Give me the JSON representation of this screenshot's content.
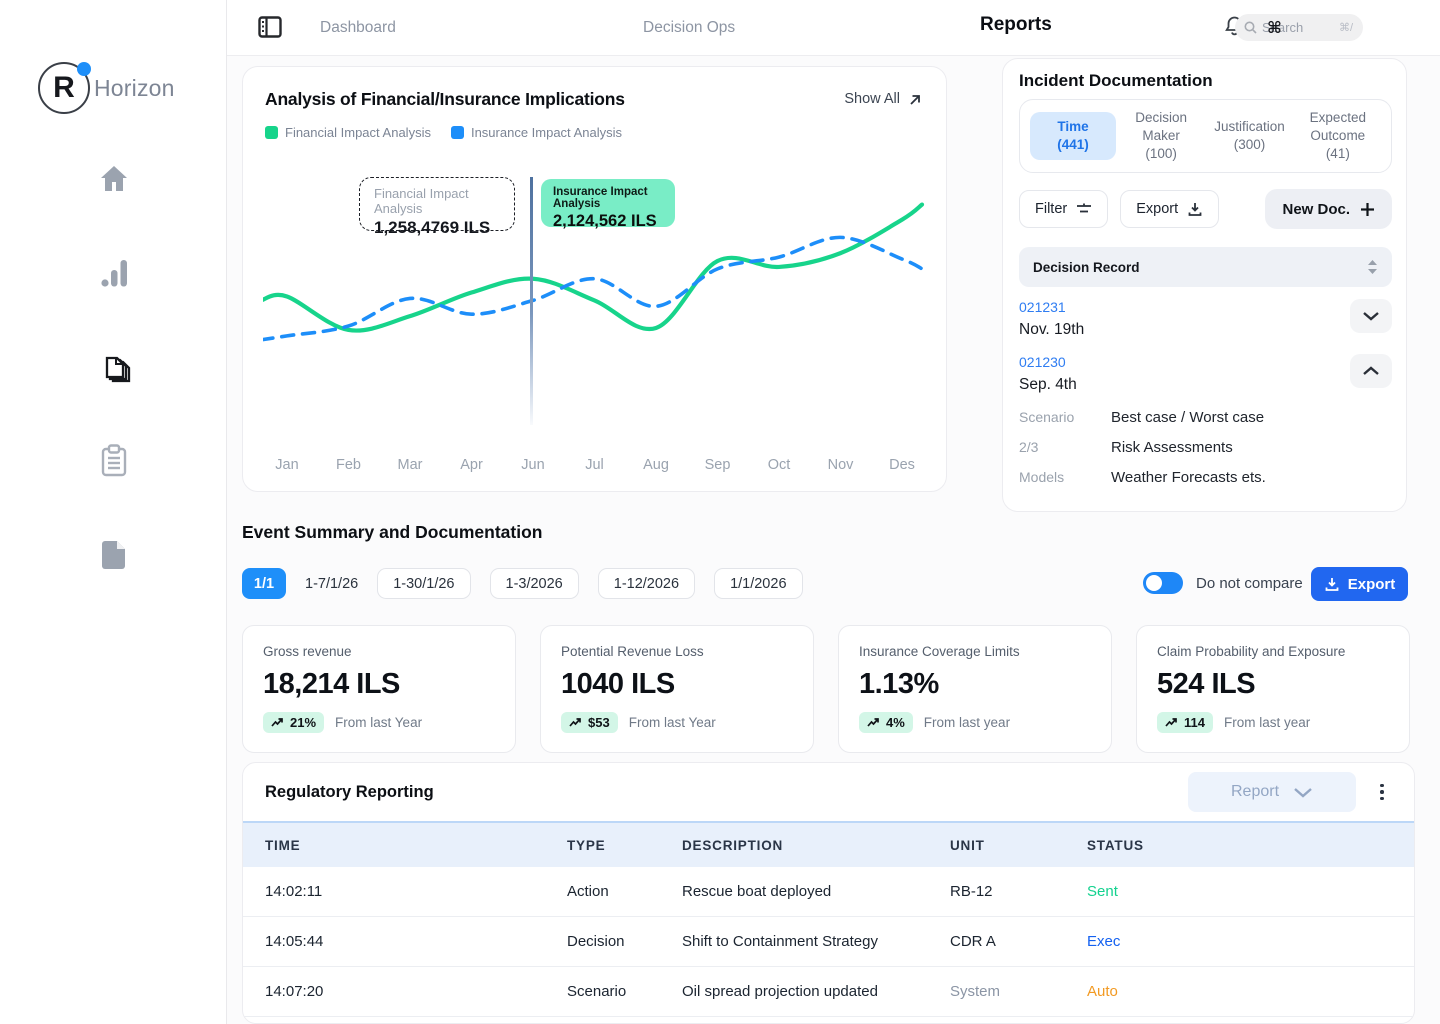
{
  "sidebar": {
    "brand_initial": "R",
    "brand": "Horizon"
  },
  "topbar": {
    "nav": [
      {
        "label": "Dashboard",
        "active": false
      },
      {
        "label": "Decision Ops",
        "active": false
      },
      {
        "label": "Reports",
        "active": true
      }
    ],
    "search": {
      "placeholder": "Search",
      "shortcut": "⌘/",
      "artifact": "⌘"
    }
  },
  "chart_card": {
    "title": "Analysis of Financial/Insurance Implications",
    "show_all": "Show All",
    "legend": [
      {
        "label": "Financial Impact Analysis",
        "color": "#17d48b"
      },
      {
        "label": "Insurance Impact Analysis",
        "color": "#1d8ef9"
      }
    ],
    "tooltips": [
      {
        "title": "Financial Impact Analysis",
        "value": "1,258,4769 ILS"
      },
      {
        "title": "Insurance Impact Analysis",
        "value": "2,124,562 ILS"
      }
    ]
  },
  "chart_data": {
    "type": "line",
    "categories": [
      "Jan",
      "Feb",
      "Mar",
      "Apr",
      "Jun",
      "Jul",
      "Aug",
      "Sep",
      "Oct",
      "Nov",
      "Des"
    ],
    "series": [
      {
        "name": "Financial Impact Analysis",
        "color": "#17d48b",
        "style": "solid",
        "values": [
          49,
          32,
          39,
          51,
          58,
          47,
          33,
          67,
          64,
          71,
          88
        ]
      },
      {
        "name": "Insurance Impact Analysis",
        "color": "#1d8ef9",
        "style": "dashed",
        "values": [
          29,
          34,
          48,
          40,
          47,
          58,
          44,
          63,
          69,
          79,
          68
        ]
      }
    ],
    "marker_category": "Jun",
    "marker_index": 4,
    "ylim": [
      0,
      100
    ],
    "grid": false,
    "legend_position": "top-left"
  },
  "incident": {
    "title": "Incident Documentation",
    "tabs": [
      {
        "label": "Time",
        "count": "(441)",
        "variant": "active"
      },
      {
        "label": "Decision Maker",
        "count": "(100)",
        "variant": ""
      },
      {
        "label": "Justification",
        "count": "(300)",
        "variant": ""
      },
      {
        "label": "Expected Outcome",
        "count": "(41)",
        "variant": ""
      }
    ],
    "filter_label": "Filter",
    "export_label": "Export",
    "new_doc_label": "New Doc.",
    "list_header": "Decision Record",
    "records": [
      {
        "id": "021231",
        "date": "Nov. 19th",
        "expanded": false,
        "details": []
      },
      {
        "id": "021230",
        "date": "Sep. 4th",
        "expanded": true,
        "details": [
          {
            "key": "Scenario",
            "value": "Best case / Worst case"
          },
          {
            "key": "2/3",
            "value": "Risk Assessments"
          },
          {
            "key": "Models",
            "value": "Weather Forecasts ets."
          }
        ]
      }
    ]
  },
  "events": {
    "title": "Event Summary and Documentation",
    "chips": [
      {
        "label": "1/1",
        "variant": "active"
      },
      {
        "label": "1-7/1/26",
        "variant": "plain"
      },
      {
        "label": "1-30/1/26",
        "variant": "outline"
      },
      {
        "label": "1-3/2026",
        "variant": "outline"
      },
      {
        "label": "1-12/2026",
        "variant": "outline"
      },
      {
        "label": "1/1/2026",
        "variant": "outline"
      }
    ],
    "toggle_label": "Do not compare",
    "export_label": "Export"
  },
  "stats": [
    {
      "label": "Gross revenue",
      "value": "18,214 ILS",
      "badge": "21%",
      "note": "From last Year"
    },
    {
      "label": "Potential Revenue Loss",
      "value": "1040 ILS",
      "badge": "$53",
      "note": "From last Year"
    },
    {
      "label": "Insurance Coverage Limits",
      "value": "1.13%",
      "badge": "4%",
      "note": "From last year"
    },
    {
      "label": "Claim Probability and Exposure",
      "value": "524 ILS",
      "badge": "114",
      "note": "From last year"
    }
  ],
  "table": {
    "title": "Regulatory Reporting",
    "report_button": "Report",
    "columns": [
      "TIME",
      "TYPE",
      "DESCRIPTION",
      "UNIT",
      "STATUS"
    ],
    "rows": [
      {
        "time": "14:02:11",
        "type": "Action",
        "description": "Rescue boat deployed",
        "unit": "RB-12",
        "unit_color": "#1b2430",
        "status": "Sent",
        "status_color": "#14d28f"
      },
      {
        "time": "14:05:44",
        "type": "Decision",
        "description": "Shift to Containment Strategy",
        "unit": "CDR A",
        "unit_color": "#1b2430",
        "status": "Exec",
        "status_color": "#1461f0"
      },
      {
        "time": "14:07:20",
        "type": "Scenario",
        "description": "Oil spread projection updated",
        "unit": "System",
        "unit_color": "#8b95a5",
        "status": "Auto",
        "status_color": "#f29a23"
      }
    ]
  },
  "colors": {
    "accent_blue": "#1e8ff9",
    "export_blue": "#2167f0",
    "chart_green": "#17d48b",
    "chart_blue": "#1d8ef9",
    "tooltip_mint": "#79edc6",
    "badge_mint": "#d3f6e7",
    "status_green": "#14d28f",
    "status_blue": "#1461f0",
    "status_orange": "#f29a23",
    "table_header_bg": "#e8f0fb"
  }
}
